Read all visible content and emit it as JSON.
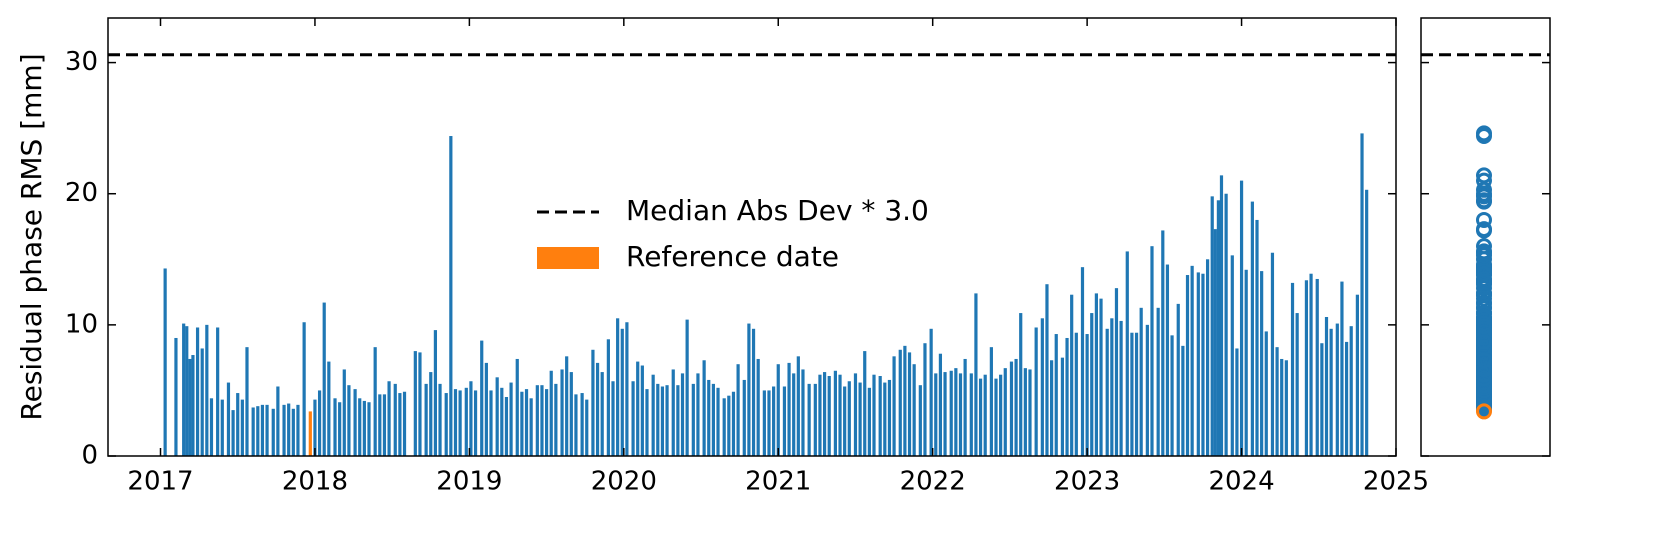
{
  "chart_data": {
    "type": "bar",
    "ylabel": "Residual phase RMS [mm]",
    "xlim": [
      2016.66,
      2025.0
    ],
    "xticks": [
      2017,
      2018,
      2019,
      2020,
      2021,
      2022,
      2023,
      2024,
      2025
    ],
    "ylim": [
      0,
      33.4
    ],
    "yticks": [
      0,
      10,
      20,
      30
    ],
    "legend": "center",
    "side_panel": "scatter",
    "threshold": {
      "name": "Median Abs Dev * 3.0",
      "value": 30.6,
      "color": "#000000",
      "style": "dashed"
    },
    "series": [
      {
        "color": "#1f77b4",
        "x": [
          2017.03,
          2017.1,
          2017.15,
          2017.17,
          2017.19,
          2017.21,
          2017.24,
          2017.27,
          2017.3,
          2017.33,
          2017.37,
          2017.4,
          2017.44,
          2017.47,
          2017.5,
          2017.53,
          2017.56,
          2017.6,
          2017.63,
          2017.66,
          2017.69,
          2017.73,
          2017.76,
          2017.8,
          2017.83,
          2017.86,
          2017.89,
          2017.93,
          2018.0,
          2018.03,
          2018.06,
          2018.09,
          2018.13,
          2018.16,
          2018.19,
          2018.22,
          2018.26,
          2018.29,
          2018.32,
          2018.35,
          2018.39,
          2018.42,
          2018.45,
          2018.48,
          2018.52,
          2018.55,
          2018.58,
          2018.65,
          2018.68,
          2018.72,
          2018.75,
          2018.78,
          2018.81,
          2018.85,
          2018.88,
          2018.91,
          2018.94,
          2018.98,
          2019.01,
          2019.04,
          2019.08,
          2019.11,
          2019.14,
          2019.18,
          2019.21,
          2019.24,
          2019.27,
          2019.31,
          2019.34,
          2019.37,
          2019.4,
          2019.44,
          2019.47,
          2019.5,
          2019.53,
          2019.56,
          2019.6,
          2019.63,
          2019.66,
          2019.69,
          2019.73,
          2019.76,
          2019.8,
          2019.83,
          2019.86,
          2019.9,
          2019.93,
          2019.96,
          2019.99,
          2020.02,
          2020.06,
          2020.09,
          2020.12,
          2020.15,
          2020.19,
          2020.22,
          2020.25,
          2020.28,
          2020.32,
          2020.35,
          2020.38,
          2020.41,
          2020.45,
          2020.48,
          2020.52,
          2020.55,
          2020.58,
          2020.61,
          2020.65,
          2020.68,
          2020.71,
          2020.74,
          2020.78,
          2020.81,
          2020.84,
          2020.87,
          2020.91,
          2020.94,
          2020.97,
          2021.0,
          2021.04,
          2021.07,
          2021.1,
          2021.13,
          2021.16,
          2021.2,
          2021.24,
          2021.27,
          2021.3,
          2021.33,
          2021.37,
          2021.4,
          2021.43,
          2021.46,
          2021.5,
          2021.53,
          2021.56,
          2021.59,
          2021.62,
          2021.66,
          2021.69,
          2021.72,
          2021.75,
          2021.79,
          2021.82,
          2021.85,
          2021.88,
          2021.92,
          2021.95,
          2021.99,
          2022.02,
          2022.05,
          2022.08,
          2022.12,
          2022.15,
          2022.18,
          2022.21,
          2022.25,
          2022.28,
          2022.31,
          2022.34,
          2022.38,
          2022.41,
          2022.44,
          2022.47,
          2022.51,
          2022.54,
          2022.57,
          2022.6,
          2022.63,
          2022.67,
          2022.71,
          2022.74,
          2022.77,
          2022.8,
          2022.84,
          2022.87,
          2022.9,
          2022.93,
          2022.97,
          2023.0,
          2023.03,
          2023.06,
          2023.09,
          2023.13,
          2023.16,
          2023.19,
          2023.22,
          2023.26,
          2023.29,
          2023.32,
          2023.35,
          2023.39,
          2023.42,
          2023.46,
          2023.49,
          2023.52,
          2023.55,
          2023.59,
          2023.62,
          2023.65,
          2023.68,
          2023.72,
          2023.75,
          2023.78,
          2023.81,
          2023.83,
          2023.85,
          2023.87,
          2023.9,
          2023.94,
          2023.97,
          2024.0,
          2024.03,
          2024.07,
          2024.1,
          2024.13,
          2024.16,
          2024.2,
          2024.23,
          2024.26,
          2024.29,
          2024.33,
          2024.36,
          2024.42,
          2024.45,
          2024.49,
          2024.52,
          2024.55,
          2024.58,
          2024.62,
          2024.65,
          2024.68,
          2024.71,
          2024.75,
          2024.78,
          2024.81
        ],
        "values": [
          14.3,
          9.0,
          10.1,
          9.9,
          7.4,
          7.7,
          9.8,
          8.2,
          10.0,
          4.4,
          9.8,
          4.3,
          5.6,
          3.5,
          4.8,
          4.3,
          8.3,
          3.7,
          3.8,
          3.9,
          3.9,
          3.6,
          5.3,
          3.9,
          4.0,
          3.6,
          3.9,
          10.2,
          4.3,
          5.0,
          11.7,
          7.2,
          4.4,
          4.1,
          6.6,
          5.4,
          5.1,
          4.4,
          4.2,
          4.1,
          8.3,
          4.7,
          4.7,
          5.7,
          5.5,
          4.8,
          4.9,
          8.0,
          7.9,
          5.5,
          6.4,
          9.6,
          5.5,
          4.8,
          24.4,
          5.1,
          5.0,
          5.2,
          5.7,
          5.0,
          8.8,
          7.1,
          5.0,
          6.0,
          5.2,
          4.5,
          5.6,
          7.4,
          4.9,
          5.1,
          4.4,
          5.4,
          5.4,
          5.1,
          6.5,
          5.5,
          6.6,
          7.6,
          6.4,
          4.7,
          4.8,
          4.3,
          8.1,
          7.1,
          6.4,
          8.9,
          5.7,
          10.5,
          9.7,
          10.2,
          5.7,
          7.2,
          6.9,
          5.1,
          6.2,
          5.5,
          5.3,
          5.4,
          6.6,
          5.4,
          6.3,
          10.4,
          5.5,
          6.3,
          7.3,
          5.8,
          5.5,
          5.2,
          4.4,
          4.6,
          4.9,
          7.0,
          5.8,
          10.1,
          9.7,
          7.4,
          5.0,
          5.0,
          5.3,
          7.0,
          5.3,
          7.1,
          6.3,
          7.6,
          6.6,
          5.5,
          5.5,
          6.2,
          6.4,
          6.1,
          6.5,
          6.2,
          5.3,
          5.7,
          6.3,
          5.6,
          8.0,
          5.2,
          6.2,
          6.1,
          5.6,
          5.8,
          7.6,
          8.1,
          8.4,
          7.9,
          7.0,
          5.4,
          8.6,
          9.7,
          6.3,
          7.8,
          6.4,
          6.5,
          6.7,
          6.3,
          7.4,
          6.3,
          12.4,
          5.9,
          6.2,
          8.3,
          5.9,
          6.2,
          6.7,
          7.2,
          7.4,
          10.9,
          6.7,
          6.6,
          9.8,
          10.5,
          13.1,
          7.3,
          9.3,
          7.5,
          9.0,
          12.3,
          9.4,
          14.4,
          9.3,
          10.9,
          12.4,
          12.0,
          9.7,
          10.5,
          12.8,
          10.3,
          15.6,
          9.4,
          9.4,
          11.3,
          10.0,
          16.0,
          11.3,
          17.2,
          14.6,
          9.2,
          11.6,
          8.4,
          13.8,
          14.5,
          14.0,
          13.9,
          15.0,
          19.8,
          17.3,
          19.5,
          21.4,
          20.0,
          15.3,
          8.2,
          21.0,
          14.2,
          19.4,
          18.0,
          14.1,
          9.5,
          15.5,
          8.3,
          7.4,
          7.3,
          13.2,
          10.9,
          13.4,
          13.9,
          13.5,
          8.6,
          10.6,
          9.7,
          10.1,
          13.3,
          8.7,
          9.9,
          12.3,
          24.6,
          20.3
        ]
      },
      {
        "name": "Reference date",
        "color": "#ff7f0e",
        "x": [
          2017.97
        ],
        "values": [
          3.4
        ]
      }
    ]
  }
}
